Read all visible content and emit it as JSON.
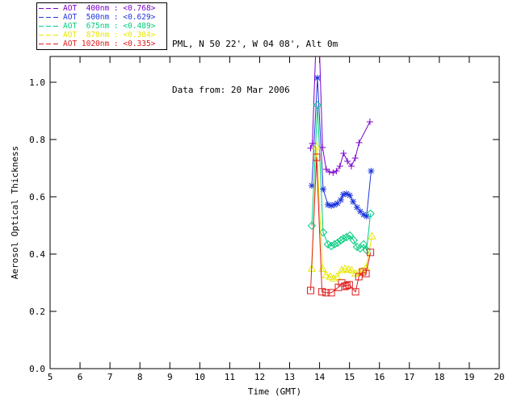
{
  "header": {
    "line1": "PML, N 50 22', W 04 08', Alt 0m",
    "line2": "Data from: 20 Mar 2006"
  },
  "legend": {
    "items": [
      {
        "label": "AOT  400nm : <0.768>",
        "color": "#7a00cc"
      },
      {
        "label": "AOT  500nm : <0.629>",
        "color": "#1f35dd"
      },
      {
        "label": "AOT  675nm : <0.489>",
        "color": "#00cc7e"
      },
      {
        "label": "AOT  870nm : <0.384>",
        "color": "#e8e800"
      },
      {
        "label": "AOT 1020nm : <0.335>",
        "color": "#dd1c1c"
      }
    ]
  },
  "chart_data": {
    "type": "line",
    "title": "",
    "xlabel": "Time (GMT)",
    "ylabel": "Aerosol Optical Thickness",
    "xlim": [
      5,
      20
    ],
    "ylim": [
      0,
      1.09
    ],
    "xticks": [
      "5",
      "6",
      "7",
      "8",
      "9",
      "10",
      "11",
      "12",
      "13",
      "14",
      "15",
      "16",
      "17",
      "18",
      "19",
      "20"
    ],
    "yticks": [
      "0.0",
      "0.2",
      "0.4",
      "0.6",
      "0.8",
      "1.0"
    ],
    "grid": false,
    "legend_position": "top-left",
    "series": [
      {
        "name": "AOT 400nm",
        "mean": "<0.768>",
        "color": "#7a00cc",
        "marker": "plus",
        "x": [
          13.7,
          13.76,
          13.9,
          13.97,
          14.1,
          14.22,
          14.33,
          14.45,
          14.56,
          14.68,
          14.8,
          14.93,
          15.06,
          15.19,
          15.32,
          15.68
        ],
        "y": [
          0.77,
          0.786,
          1.2,
          1.2,
          0.772,
          0.696,
          0.687,
          0.684,
          0.69,
          0.707,
          0.752,
          0.724,
          0.707,
          0.735,
          0.789,
          0.862
        ]
      },
      {
        "name": "AOT 500nm",
        "mean": "<0.629>",
        "color": "#1f35dd",
        "marker": "asterisk",
        "x": [
          13.74,
          13.93,
          14.12,
          14.28,
          14.39,
          14.5,
          14.6,
          14.71,
          14.79,
          14.9,
          15.01,
          15.12,
          15.25,
          15.36,
          15.47,
          15.57,
          15.72
        ],
        "y": [
          0.639,
          1.015,
          0.627,
          0.572,
          0.569,
          0.572,
          0.577,
          0.589,
          0.608,
          0.611,
          0.605,
          0.583,
          0.563,
          0.549,
          0.538,
          0.532,
          0.69
        ]
      },
      {
        "name": "AOT 675nm",
        "mean": "<0.489>",
        "color": "#00cc7e",
        "marker": "diamond",
        "x": [
          13.74,
          13.93,
          14.12,
          14.28,
          14.39,
          14.5,
          14.6,
          14.71,
          14.79,
          14.9,
          15.01,
          15.14,
          15.25,
          15.36,
          15.47,
          15.57,
          15.7
        ],
        "y": [
          0.499,
          0.92,
          0.476,
          0.434,
          0.428,
          0.434,
          0.439,
          0.448,
          0.454,
          0.459,
          0.465,
          0.448,
          0.425,
          0.42,
          0.434,
          0.414,
          0.541
        ]
      },
      {
        "name": "AOT 870nm",
        "mean": "<0.384>",
        "color": "#e8e800",
        "marker": "triangle",
        "x": [
          13.74,
          13.9,
          14.1,
          14.22,
          14.36,
          14.47,
          14.58,
          14.74,
          14.85,
          14.96,
          15.07,
          15.2,
          15.31,
          15.42,
          15.55,
          15.75
        ],
        "y": [
          0.349,
          0.775,
          0.349,
          0.327,
          0.321,
          0.315,
          0.321,
          0.344,
          0.349,
          0.346,
          0.344,
          0.332,
          0.335,
          0.341,
          0.352,
          0.462
        ]
      },
      {
        "name": "AOT 1020nm",
        "mean": "<0.335>",
        "color": "#dd1c1c",
        "marker": "square",
        "x": [
          13.7,
          13.9,
          14.08,
          14.22,
          14.39,
          14.63,
          14.74,
          14.85,
          14.91,
          14.99,
          15.2,
          15.31,
          15.44,
          15.55,
          15.7
        ],
        "y": [
          0.273,
          0.738,
          0.268,
          0.265,
          0.265,
          0.284,
          0.299,
          0.287,
          0.29,
          0.293,
          0.268,
          0.321,
          0.338,
          0.332,
          0.406
        ]
      }
    ]
  }
}
